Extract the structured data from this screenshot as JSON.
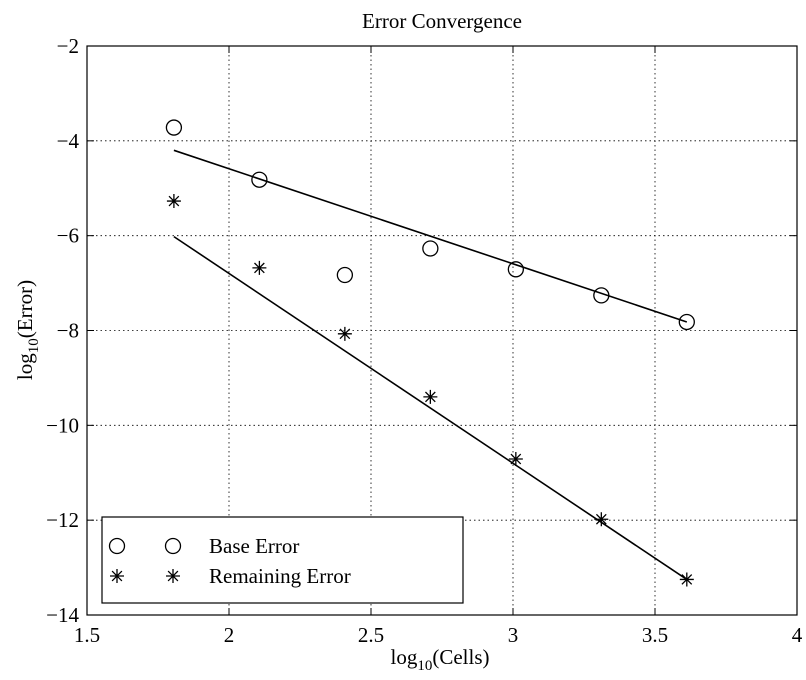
{
  "chart_data": {
    "type": "scatter",
    "title": "Error Convergence",
    "xlabel": {
      "prefix": "log",
      "subscript": "10",
      "suffix": "(Cells)"
    },
    "ylabel": {
      "prefix": "log",
      "subscript": "10",
      "suffix": "(Error)"
    },
    "xlim": [
      1.5,
      4
    ],
    "ylim": [
      -14,
      -2
    ],
    "xticks": [
      1.5,
      2,
      2.5,
      3,
      3.5,
      4
    ],
    "yticks": [
      -14,
      -12,
      -10,
      -8,
      -6,
      -4,
      -2
    ],
    "xtick_labels": [
      "1.5",
      "2",
      "2.5",
      "3",
      "3.5",
      "4"
    ],
    "ytick_labels": [
      "−14",
      "−12",
      "−10",
      "−8",
      "−6",
      "−4",
      "−2"
    ],
    "grid": true,
    "legend_position": "bottom-left",
    "series": [
      {
        "name": "Base Error",
        "marker": "circle",
        "x": [
          1.806,
          2.107,
          2.408,
          2.709,
          3.01,
          3.311,
          3.612
        ],
        "y": [
          -3.72,
          -4.82,
          -6.83,
          -6.27,
          -6.71,
          -7.26,
          -7.82
        ],
        "fit": {
          "x": [
            1.806,
            3.612
          ],
          "y": [
            -4.2,
            -7.82
          ]
        }
      },
      {
        "name": "Remaining Error",
        "marker": "asterisk",
        "x": [
          1.806,
          2.107,
          2.408,
          2.709,
          3.01,
          3.311,
          3.612
        ],
        "y": [
          -5.27,
          -6.68,
          -8.07,
          -9.4,
          -10.71,
          -11.98,
          -13.25
        ],
        "fit": {
          "x": [
            1.806,
            3.612
          ],
          "y": [
            -6.02,
            -13.25
          ]
        }
      }
    ]
  }
}
